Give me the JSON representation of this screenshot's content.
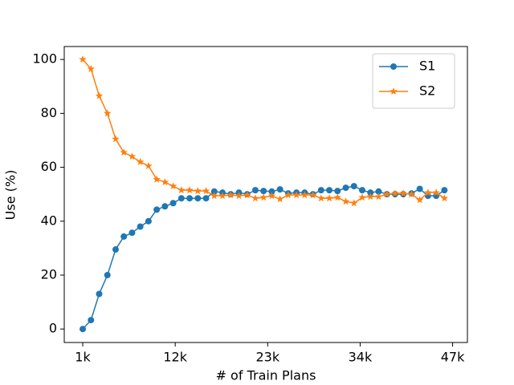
{
  "chart_data": {
    "type": "line",
    "xlabel": "# of Train Plans",
    "ylabel": "Use (%)",
    "x": [
      0,
      1,
      2,
      3,
      4,
      5,
      6,
      7,
      8,
      9,
      10,
      11,
      12,
      13,
      14,
      15,
      16,
      17,
      18,
      19,
      20,
      21,
      22,
      23,
      24,
      25,
      26,
      27,
      28,
      29,
      30,
      31,
      32,
      33,
      34,
      35,
      36,
      37,
      38,
      39,
      40,
      41,
      42,
      43,
      44
    ],
    "series": [
      {
        "name": "S1",
        "color": "#1f77b4",
        "marker": "circle",
        "values": [
          0,
          3.3,
          13,
          20,
          29.5,
          34.3,
          35.7,
          38,
          40,
          44.3,
          45.5,
          46.7,
          48.5,
          48.5,
          48.5,
          48.5,
          51,
          50.6,
          50,
          50.6,
          50,
          51.5,
          51.2,
          51,
          51.8,
          50.3,
          50.6,
          50.6,
          50,
          51.5,
          51.5,
          51.2,
          52.4,
          53,
          51.5,
          50.6,
          51,
          50,
          50,
          50,
          50.3,
          52,
          49.4,
          49.4,
          51.5
        ]
      },
      {
        "name": "S2",
        "color": "#ff7f0e",
        "marker": "star",
        "values": [
          100,
          96.5,
          86.5,
          80,
          70.5,
          65.5,
          64,
          62,
          60.5,
          55.5,
          54.5,
          53,
          51.5,
          51.5,
          51.2,
          51.2,
          49.4,
          49.4,
          49.7,
          49.4,
          49.7,
          48.5,
          48.8,
          49.4,
          48.2,
          49.7,
          49.7,
          49.7,
          49.7,
          48.5,
          48.5,
          48.8,
          47.3,
          46.7,
          48.8,
          49.1,
          49.1,
          50,
          50.3,
          50.3,
          50,
          47.9,
          50.6,
          50.6,
          48.5
        ]
      }
    ],
    "xlim": [
      -2.25,
      46.8
    ],
    "xticks": [
      {
        "value": 0,
        "label": "1k"
      },
      {
        "value": 11.25,
        "label": "12k"
      },
      {
        "value": 22.5,
        "label": "23k"
      },
      {
        "value": 33.75,
        "label": "34k"
      },
      {
        "value": 45,
        "label": "47k"
      }
    ],
    "ylim": [
      -5,
      104.8
    ],
    "yticks": [
      0,
      20,
      40,
      60,
      80,
      100
    ],
    "legend": "upper right"
  }
}
